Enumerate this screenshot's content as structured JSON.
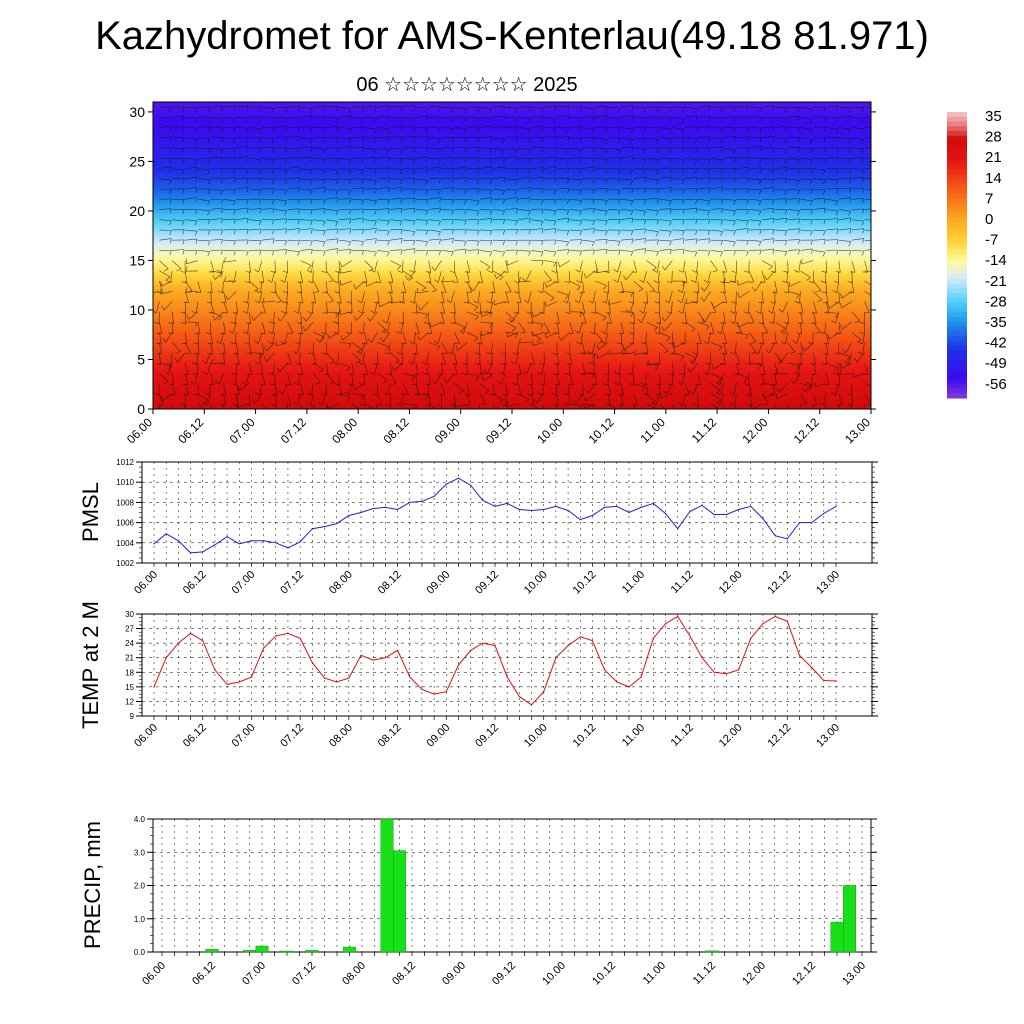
{
  "title": "Kazhydromet for AMS-Kenterlau(49.18 81.971)",
  "subtitle": "06 ☆☆☆☆☆☆☆☆ 2025",
  "colors": {
    "pmsl_line": "#1f1fd6",
    "temp_line": "#e01010",
    "precip_bar": "#18e018",
    "precip_bar_edge": "#0a8a0a",
    "grid": "#000000"
  },
  "x_time_labels": [
    "06.00",
    "06.12",
    "07.00",
    "07.12",
    "08.00",
    "08.12",
    "09.00",
    "09.12",
    "10.00",
    "10.12",
    "11.00",
    "11.12",
    "12.00",
    "12.12",
    "13.00"
  ],
  "chart_data": [
    {
      "type": "heatmap",
      "name": "upper-air cross section",
      "x_labels": [
        "06.00",
        "06.12",
        "07.00",
        "07.12",
        "08.00",
        "08.12",
        "09.00",
        "09.12",
        "10.00",
        "10.12",
        "11.00",
        "11.12",
        "12.00",
        "12.12",
        "13.00"
      ],
      "y_ticks": [
        0,
        5,
        10,
        15,
        20,
        25,
        30
      ],
      "ylim": [
        0,
        31
      ],
      "colorbar_labels": [
        "35",
        "28",
        "21",
        "14",
        "7",
        "0",
        "-7",
        "-14",
        "-21",
        "-28",
        "-35",
        "-42",
        "-49",
        "-56"
      ],
      "colorbar_range": [
        -63,
        42
      ],
      "overlay": "wind barbs",
      "temperature_by_level": [
        {
          "level": 0,
          "value": 32
        },
        {
          "level": 3,
          "value": 26
        },
        {
          "level": 6,
          "value": 18
        },
        {
          "level": 9,
          "value": 10
        },
        {
          "level": 12,
          "value": 2
        },
        {
          "level": 14,
          "value": -8
        },
        {
          "level": 16,
          "value": -16
        },
        {
          "level": 18,
          "value": -24
        },
        {
          "level": 20,
          "value": -32
        },
        {
          "level": 22,
          "value": -40
        },
        {
          "level": 25,
          "value": -48
        },
        {
          "level": 28,
          "value": -55
        },
        {
          "level": 31,
          "value": -58
        }
      ]
    },
    {
      "type": "line",
      "ylabel": "PMSL",
      "ylim": [
        1002,
        1012
      ],
      "y_ticks": [
        1002,
        1004,
        1006,
        1008,
        1010,
        1012
      ],
      "x_labels": [
        "06.00",
        "06.12",
        "07.00",
        "07.12",
        "08.00",
        "08.12",
        "09.00",
        "09.12",
        "10.00",
        "10.12",
        "11.00",
        "11.12",
        "12.00",
        "12.12",
        "13.00"
      ],
      "x_hours": [
        0,
        3,
        6,
        9,
        12,
        15,
        18,
        21,
        24,
        27,
        30,
        33,
        36,
        39,
        42,
        45,
        48,
        51,
        54,
        57,
        60,
        63,
        66,
        69,
        72,
        75,
        78,
        81,
        84,
        87,
        90,
        93,
        96,
        99,
        102,
        105,
        108,
        111,
        114,
        117,
        120,
        123,
        126,
        129,
        132,
        135,
        138,
        141,
        144,
        147,
        150,
        153,
        156,
        159,
        162,
        165,
        168
      ],
      "values": [
        1003.9,
        1004.9,
        1004.2,
        1003.0,
        1003.1,
        1003.8,
        1004.6,
        1003.9,
        1004.2,
        1004.2,
        1004.0,
        1003.5,
        1004.1,
        1005.4,
        1005.6,
        1005.9,
        1006.7,
        1007.0,
        1007.4,
        1007.5,
        1007.3,
        1008.0,
        1008.1,
        1008.6,
        1009.8,
        1010.4,
        1009.7,
        1008.2,
        1007.6,
        1007.9,
        1007.3,
        1007.2,
        1007.3,
        1007.6,
        1007.2,
        1006.3,
        1006.7,
        1007.5,
        1007.6,
        1007.0,
        1007.5,
        1007.9,
        1006.9,
        1005.4,
        1007.1,
        1007.7,
        1006.8,
        1006.8,
        1007.3,
        1007.6,
        1006.4,
        1004.7,
        1004.4,
        1006.0,
        1006.0,
        1006.9,
        1007.6
      ]
    },
    {
      "type": "line",
      "ylabel": "TEMP at 2 M",
      "ylim": [
        9,
        30
      ],
      "y_ticks": [
        9,
        12,
        15,
        18,
        21,
        24,
        27,
        30
      ],
      "x_labels": [
        "06.00",
        "06.12",
        "07.00",
        "07.12",
        "08.00",
        "08.12",
        "09.00",
        "09.12",
        "10.00",
        "10.12",
        "11.00",
        "11.12",
        "12.00",
        "12.12",
        "13.00"
      ],
      "x_hours": [
        0,
        3,
        6,
        9,
        12,
        15,
        18,
        21,
        24,
        27,
        30,
        33,
        36,
        39,
        42,
        45,
        48,
        51,
        54,
        57,
        60,
        63,
        66,
        69,
        72,
        75,
        78,
        81,
        84,
        87,
        90,
        93,
        96,
        99,
        102,
        105,
        108,
        111,
        114,
        117,
        120,
        123,
        126,
        129,
        132,
        135,
        138,
        141,
        144,
        147,
        150,
        153,
        156,
        159,
        162,
        165,
        168
      ],
      "values": [
        15,
        21,
        24,
        26,
        24.5,
        18.5,
        15.5,
        16,
        17,
        23,
        25.5,
        26,
        25,
        20,
        16.8,
        16,
        16.8,
        21.5,
        20.5,
        21,
        22.5,
        17,
        14.5,
        13.5,
        14,
        19.5,
        22.5,
        24,
        23.5,
        17,
        13,
        11.3,
        14,
        21,
        23.5,
        25.3,
        24.5,
        18.5,
        16,
        15,
        17,
        25,
        28,
        29.5,
        25.5,
        21,
        18,
        17.7,
        18.5,
        25,
        28,
        29.5,
        28.5,
        21.5,
        19,
        16.3,
        16.2
      ]
    },
    {
      "type": "bar",
      "ylabel": "PRECIP, mm",
      "ylim": [
        0,
        4
      ],
      "y_ticks": [
        "0.0",
        "1.0",
        "2.0",
        "3.0",
        "4.0"
      ],
      "x_labels": [
        "06.00",
        "06.12",
        "07.00",
        "07.12",
        "08.00",
        "08.12",
        "09.00",
        "09.12",
        "10.00",
        "10.12",
        "11.00",
        "11.12",
        "12.00",
        "12.12",
        "13.00"
      ],
      "bars": [
        {
          "hour": 12,
          "value": 0.08
        },
        {
          "hour": 21,
          "value": 0.05
        },
        {
          "hour": 24,
          "value": 0.18
        },
        {
          "hour": 30,
          "value": 0.03
        },
        {
          "hour": 36,
          "value": 0.05
        },
        {
          "hour": 45,
          "value": 0.15
        },
        {
          "hour": 54,
          "value": 4.0
        },
        {
          "hour": 57,
          "value": 3.05
        },
        {
          "hour": 132,
          "value": 0.04
        },
        {
          "hour": 162,
          "value": 0.9
        },
        {
          "hour": 165,
          "value": 2.0
        }
      ]
    }
  ]
}
